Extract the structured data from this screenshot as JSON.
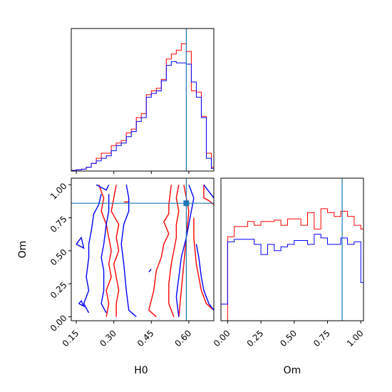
{
  "colors": {
    "red": "#ff0000",
    "blue": "#0000ff",
    "truth": "#1f77b4",
    "axis": "#000000"
  },
  "truth": {
    "H0": 0.59,
    "Om": 0.86
  },
  "chart_data": [
    {
      "type": "histogram",
      "title": "",
      "xlabel": "",
      "ylabel": "",
      "xlim": [
        0.13,
        0.7
      ],
      "ylim": [
        0,
        1.0
      ],
      "bins_x": [
        0.13,
        0.15,
        0.17,
        0.19,
        0.21,
        0.23,
        0.25,
        0.27,
        0.29,
        0.31,
        0.33,
        0.35,
        0.37,
        0.39,
        0.41,
        0.43,
        0.45,
        0.47,
        0.49,
        0.51,
        0.53,
        0.55,
        0.57,
        0.59,
        0.61,
        0.63,
        0.65,
        0.67,
        0.69,
        0.7
      ],
      "series": [
        {
          "color_key": "red",
          "values": [
            0.005,
            0.01,
            0.015,
            0.03,
            0.06,
            0.1,
            0.14,
            0.14,
            0.2,
            0.22,
            0.24,
            0.3,
            0.33,
            0.42,
            0.45,
            0.6,
            0.63,
            0.65,
            0.72,
            0.88,
            0.92,
            0.95,
            1.0,
            0.94,
            0.63,
            0.62,
            0.43,
            0.14,
            0.03
          ]
        },
        {
          "color_key": "blue",
          "values": [
            0.005,
            0.01,
            0.015,
            0.03,
            0.06,
            0.08,
            0.1,
            0.12,
            0.16,
            0.2,
            0.22,
            0.27,
            0.31,
            0.39,
            0.42,
            0.58,
            0.61,
            0.63,
            0.71,
            0.83,
            0.86,
            0.85,
            0.85,
            0.84,
            0.7,
            0.58,
            0.42,
            0.1,
            0.02
          ]
        }
      ]
    },
    {
      "type": "contour",
      "title": "",
      "xlabel": "H0",
      "ylabel": "Om",
      "xlim": [
        0.13,
        0.7
      ],
      "ylim": [
        -0.03,
        1.05
      ],
      "xticks": [
        "0.15",
        "0.30",
        "0.45",
        "0.60"
      ],
      "xtick_values": [
        0.15,
        0.3,
        0.45,
        0.6
      ],
      "yticks": [
        "0.00",
        "0.25",
        "0.50",
        "0.75",
        "1.00"
      ],
      "ytick_values": [
        0.0,
        0.25,
        0.5,
        0.75,
        1.0
      ],
      "series": [
        {
          "color_key": "red",
          "contours": [
            [
              [
                0.24,
                1.0
              ],
              [
                0.26,
                0.9
              ],
              [
                0.25,
                0.8
              ],
              [
                0.27,
                0.7
              ],
              [
                0.28,
                0.6
              ],
              [
                0.29,
                0.5
              ],
              [
                0.28,
                0.4
              ],
              [
                0.29,
                0.3
              ],
              [
                0.27,
                0.2
              ],
              [
                0.28,
                0.1
              ],
              [
                0.27,
                0.0
              ]
            ],
            [
              [
                0.31,
                1.0
              ],
              [
                0.3,
                0.9
              ],
              [
                0.29,
                0.8
              ],
              [
                0.32,
                0.7
              ],
              [
                0.31,
                0.6
              ],
              [
                0.32,
                0.5
              ],
              [
                0.3,
                0.4
              ],
              [
                0.31,
                0.3
              ],
              [
                0.32,
                0.2
              ],
              [
                0.31,
                0.1
              ],
              [
                0.31,
                0.0
              ]
            ],
            [
              [
                0.53,
                1.0
              ],
              [
                0.52,
                0.85
              ],
              [
                0.52,
                0.78
              ],
              [
                0.5,
                0.72
              ],
              [
                0.52,
                0.63
              ],
              [
                0.5,
                0.55
              ],
              [
                0.49,
                0.45
              ],
              [
                0.47,
                0.35
              ],
              [
                0.46,
                0.2
              ],
              [
                0.44,
                0.05
              ],
              [
                0.47,
                0.0
              ]
            ],
            [
              [
                0.56,
                1.0
              ],
              [
                0.55,
                0.9
              ],
              [
                0.56,
                0.8
              ],
              [
                0.55,
                0.7
              ],
              [
                0.55,
                0.6
              ],
              [
                0.54,
                0.5
              ],
              [
                0.53,
                0.4
              ],
              [
                0.52,
                0.25
              ],
              [
                0.52,
                0.1
              ],
              [
                0.54,
                0.0
              ]
            ],
            [
              [
                0.58,
                1.0
              ],
              [
                0.6,
                0.8
              ],
              [
                0.59,
                0.6
              ],
              [
                0.58,
                0.4
              ],
              [
                0.57,
                0.2
              ],
              [
                0.56,
                0.0
              ]
            ],
            [
              [
                0.66,
                1.0
              ],
              [
                0.66,
                0.9
              ],
              [
                0.68,
                0.88
              ],
              [
                0.7,
                0.85
              ]
            ],
            [
              [
                0.62,
                0.75
              ],
              [
                0.62,
                0.6
              ],
              [
                0.63,
                0.4
              ],
              [
                0.64,
                0.3
              ],
              [
                0.65,
                0.2
              ],
              [
                0.67,
                0.1
              ],
              [
                0.7,
                0.05
              ]
            ],
            [
              [
                0.34,
                0.87
              ],
              [
                0.36,
                0.87
              ]
            ]
          ]
        },
        {
          "color_key": "blue",
          "contours": [
            [
              [
                0.23,
                1.0
              ],
              [
                0.25,
                0.98
              ],
              [
                0.27,
                0.96
              ],
              [
                0.28,
                1.0
              ]
            ],
            [
              [
                0.25,
                0.93
              ],
              [
                0.24,
                0.85
              ],
              [
                0.22,
                0.78
              ],
              [
                0.21,
                0.65
              ],
              [
                0.2,
                0.55
              ],
              [
                0.2,
                0.45
              ],
              [
                0.19,
                0.3
              ],
              [
                0.2,
                0.2
              ],
              [
                0.18,
                0.1
              ],
              [
                0.2,
                0.03
              ]
            ],
            [
              [
                0.28,
                0.93
              ],
              [
                0.28,
                0.8
              ],
              [
                0.27,
                0.7
              ],
              [
                0.26,
                0.55
              ],
              [
                0.25,
                0.45
              ],
              [
                0.26,
                0.35
              ],
              [
                0.26,
                0.2
              ],
              [
                0.25,
                0.1
              ],
              [
                0.27,
                0.03
              ]
            ],
            [
              [
                0.35,
                1.0
              ],
              [
                0.36,
                0.9
              ],
              [
                0.36,
                0.8
              ],
              [
                0.34,
                0.7
              ],
              [
                0.33,
                0.55
              ],
              [
                0.34,
                0.4
              ],
              [
                0.35,
                0.2
              ],
              [
                0.36,
                0.05
              ],
              [
                0.39,
                0.0
              ]
            ],
            [
              [
                0.6,
                1.0
              ],
              [
                0.62,
                0.9
              ],
              [
                0.61,
                0.8
              ],
              [
                0.59,
                0.6
              ],
              [
                0.57,
                0.45
              ],
              [
                0.56,
                0.3
              ],
              [
                0.55,
                0.15
              ],
              [
                0.56,
                0.0
              ]
            ],
            [
              [
                0.66,
                1.0
              ],
              [
                0.68,
                0.95
              ],
              [
                0.7,
                0.9
              ]
            ],
            [
              [
                0.63,
                0.55
              ],
              [
                0.64,
                0.45
              ],
              [
                0.65,
                0.3
              ],
              [
                0.66,
                0.2
              ],
              [
                0.68,
                0.1
              ],
              [
                0.7,
                0.05
              ]
            ],
            [
              [
                0.16,
                0.1
              ],
              [
                0.17,
                0.12
              ],
              [
                0.18,
                0.08
              ],
              [
                0.16,
                0.1
              ]
            ],
            [
              [
                0.15,
                0.55
              ],
              [
                0.17,
                0.6
              ],
              [
                0.18,
                0.52
              ],
              [
                0.15,
                0.55
              ]
            ],
            [
              [
                0.44,
                0.34
              ],
              [
                0.45,
                0.36
              ]
            ]
          ]
        }
      ]
    },
    {
      "type": "histogram",
      "title": "",
      "xlabel": "Om",
      "ylabel": "",
      "xlim": [
        -0.05,
        1.02
      ],
      "ylim": [
        0,
        1.0
      ],
      "xticks": [
        "0.00",
        "0.25",
        "0.50",
        "0.75",
        "1.00"
      ],
      "xtick_values": [
        0.0,
        0.25,
        0.5,
        0.75,
        1.0
      ],
      "bins_x": [
        -0.05,
        0.0,
        0.05,
        0.1,
        0.15,
        0.2,
        0.25,
        0.3,
        0.35,
        0.4,
        0.45,
        0.5,
        0.55,
        0.6,
        0.65,
        0.7,
        0.75,
        0.8,
        0.85,
        0.9,
        0.95,
        1.0,
        1.02
      ],
      "series": [
        {
          "color_key": "red",
          "values": [
            0.0,
            0.66,
            0.74,
            0.74,
            0.78,
            0.75,
            0.78,
            0.78,
            0.79,
            0.75,
            0.8,
            0.8,
            0.75,
            0.85,
            0.72,
            0.88,
            0.85,
            0.82,
            0.86,
            0.82,
            0.75,
            0.72
          ]
        },
        {
          "color_key": "blue",
          "values": [
            0.13,
            0.62,
            0.64,
            0.64,
            0.64,
            0.6,
            0.52,
            0.6,
            0.55,
            0.58,
            0.6,
            0.63,
            0.63,
            0.6,
            0.68,
            0.65,
            0.6,
            0.6,
            0.65,
            0.6,
            0.62,
            0.3
          ]
        }
      ]
    }
  ]
}
